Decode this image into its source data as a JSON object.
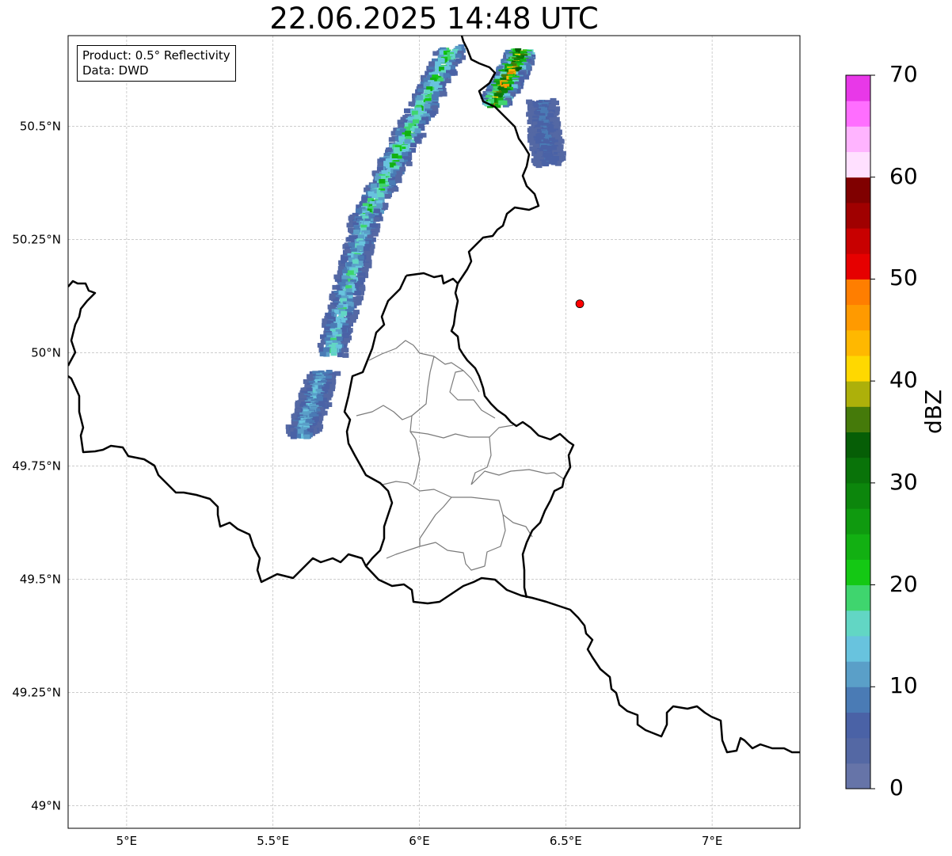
{
  "title": "22.06.2025 14:48 UTC",
  "info": {
    "product": "Product: 0.5° Reflectivity",
    "source": "Data: DWD"
  },
  "map": {
    "lon_range": [
      4.8,
      7.3
    ],
    "lat_range": [
      48.95,
      50.7
    ],
    "lon_ticks": [
      {
        "value": 5.0,
        "label": "5°E"
      },
      {
        "value": 5.5,
        "label": "5.5°E"
      },
      {
        "value": 6.0,
        "label": "6°E"
      },
      {
        "value": 6.5,
        "label": "6.5°E"
      },
      {
        "value": 7.0,
        "label": "7°E"
      }
    ],
    "lat_ticks": [
      {
        "value": 50.5,
        "label": "50.5°N"
      },
      {
        "value": 50.25,
        "label": "50.25°N"
      },
      {
        "value": 50.0,
        "label": "50°N"
      },
      {
        "value": 49.75,
        "label": "49.75°N"
      },
      {
        "value": 49.5,
        "label": "49.5°N"
      },
      {
        "value": 49.25,
        "label": "49.25°N"
      },
      {
        "value": 49.0,
        "label": "49°N"
      }
    ],
    "marker": {
      "lon": 6.548,
      "lat": 50.108,
      "color": "#ff0000"
    },
    "gridlines": true
  },
  "colorbar": {
    "unit": "dBZ",
    "range": [
      0,
      70
    ],
    "step": 2.5,
    "ticks": [
      {
        "value": 0,
        "label": "0"
      },
      {
        "value": 10,
        "label": "10"
      },
      {
        "value": 20,
        "label": "20"
      },
      {
        "value": 30,
        "label": "30"
      },
      {
        "value": 40,
        "label": "40"
      },
      {
        "value": 50,
        "label": "50"
      },
      {
        "value": 60,
        "label": "60"
      },
      {
        "value": 70,
        "label": "70"
      }
    ],
    "colors": [
      "#6674a8",
      "#5468a4",
      "#4a62a6",
      "#4a7bb5",
      "#5a9fc8",
      "#68c3de",
      "#62d6c4",
      "#3fd56e",
      "#14c814",
      "#12b012",
      "#0f9a0f",
      "#0c860c",
      "#097309",
      "#065e06",
      "#457a0a",
      "#adb00a",
      "#ffd800",
      "#ffb800",
      "#ff9a00",
      "#ff7e00",
      "#e60000",
      "#c80000",
      "#a00000",
      "#800000",
      "#ffe0ff",
      "#ffb4ff",
      "#ff6eff",
      "#e838e8"
    ]
  },
  "radar_bands": [
    {
      "name": "western-band-north",
      "lat_from": 50.67,
      "lat_to": 50.3,
      "lon_center_from": 6.11,
      "lon_center_to": 5.82,
      "max_dbz": 27
    },
    {
      "name": "western-band-mid",
      "lat_from": 50.3,
      "lat_to": 50.0,
      "lon_center_from": 5.82,
      "lon_center_to": 5.7,
      "max_dbz": 20
    },
    {
      "name": "western-band-south",
      "lat_from": 49.95,
      "lat_to": 49.82,
      "lon_center_from": 5.67,
      "lon_center_to": 5.6,
      "max_dbz": 17
    },
    {
      "name": "northern-cell",
      "lat_from": 50.66,
      "lat_to": 50.55,
      "lon_center_from": 6.35,
      "lon_center_to": 6.26,
      "max_dbz": 55
    },
    {
      "name": "eastern-streak",
      "lat_from": 50.55,
      "lat_to": 50.42,
      "lon_center_from": 6.42,
      "lon_center_to": 6.44,
      "max_dbz": 10
    }
  ]
}
